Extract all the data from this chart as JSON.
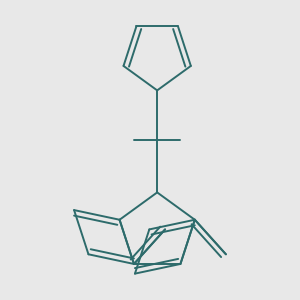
{
  "line_color": "#2d6b6b",
  "bg_color": "#e8e8e8",
  "line_width": 1.4,
  "figsize": [
    3.0,
    3.0
  ],
  "dpi": 100
}
